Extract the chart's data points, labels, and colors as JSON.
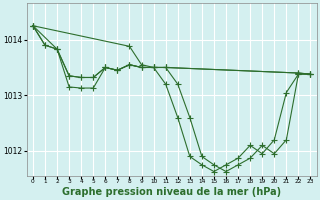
{
  "background_color": "#d4f0f0",
  "grid_color": "#ffffff",
  "line_color": "#2d6e2d",
  "xlabel": "Graphe pression niveau de la mer (hPa)",
  "xlabel_fontsize": 7.0,
  "xlim": [
    -0.5,
    23.5
  ],
  "ylim": [
    1011.55,
    1014.65
  ],
  "yticks": [
    1012,
    1013,
    1014
  ],
  "xticks": [
    0,
    1,
    2,
    3,
    4,
    5,
    6,
    7,
    8,
    9,
    10,
    11,
    12,
    13,
    14,
    15,
    16,
    17,
    18,
    19,
    20,
    21,
    22,
    23
  ],
  "series": [
    {
      "x": [
        0,
        1,
        2,
        3,
        4,
        5,
        6,
        7,
        8,
        9,
        10,
        11,
        22,
        23
      ],
      "y": [
        1014.25,
        1013.9,
        1013.83,
        1013.35,
        1013.32,
        1013.32,
        1013.5,
        1013.45,
        1013.55,
        1013.5,
        1013.5,
        1013.5,
        1013.4,
        1013.38
      ]
    },
    {
      "x": [
        0,
        1,
        2,
        3,
        4,
        5,
        6,
        7,
        8,
        9,
        10,
        11,
        12,
        13,
        14,
        15,
        16,
        17,
        18,
        19,
        20,
        21,
        22,
        23
      ],
      "y": [
        1014.25,
        1013.9,
        1013.83,
        1013.35,
        1013.32,
        1013.32,
        1013.5,
        1013.45,
        1013.55,
        1013.5,
        1013.5,
        1013.2,
        1012.6,
        1011.9,
        1011.75,
        1011.63,
        1011.75,
        1011.87,
        1012.1,
        1011.95,
        1012.2,
        1013.05,
        1013.38,
        1013.38
      ]
    },
    {
      "x": [
        0,
        2,
        3,
        4,
        5,
        6,
        7,
        8,
        9,
        10,
        11,
        22,
        23
      ],
      "y": [
        1014.25,
        1013.83,
        1013.15,
        1013.13,
        1013.13,
        1013.5,
        1013.45,
        1013.55,
        1013.5,
        1013.5,
        1013.5,
        1013.4,
        1013.38
      ]
    },
    {
      "x": [
        0,
        8,
        9,
        10,
        11,
        12,
        13,
        14,
        15,
        16,
        17,
        18,
        19,
        20,
        21,
        22,
        23
      ],
      "y": [
        1014.25,
        1013.88,
        1013.55,
        1013.5,
        1013.5,
        1013.2,
        1012.6,
        1011.9,
        1011.75,
        1011.63,
        1011.75,
        1011.87,
        1012.1,
        1011.95,
        1012.2,
        1013.38,
        1013.38
      ]
    }
  ]
}
